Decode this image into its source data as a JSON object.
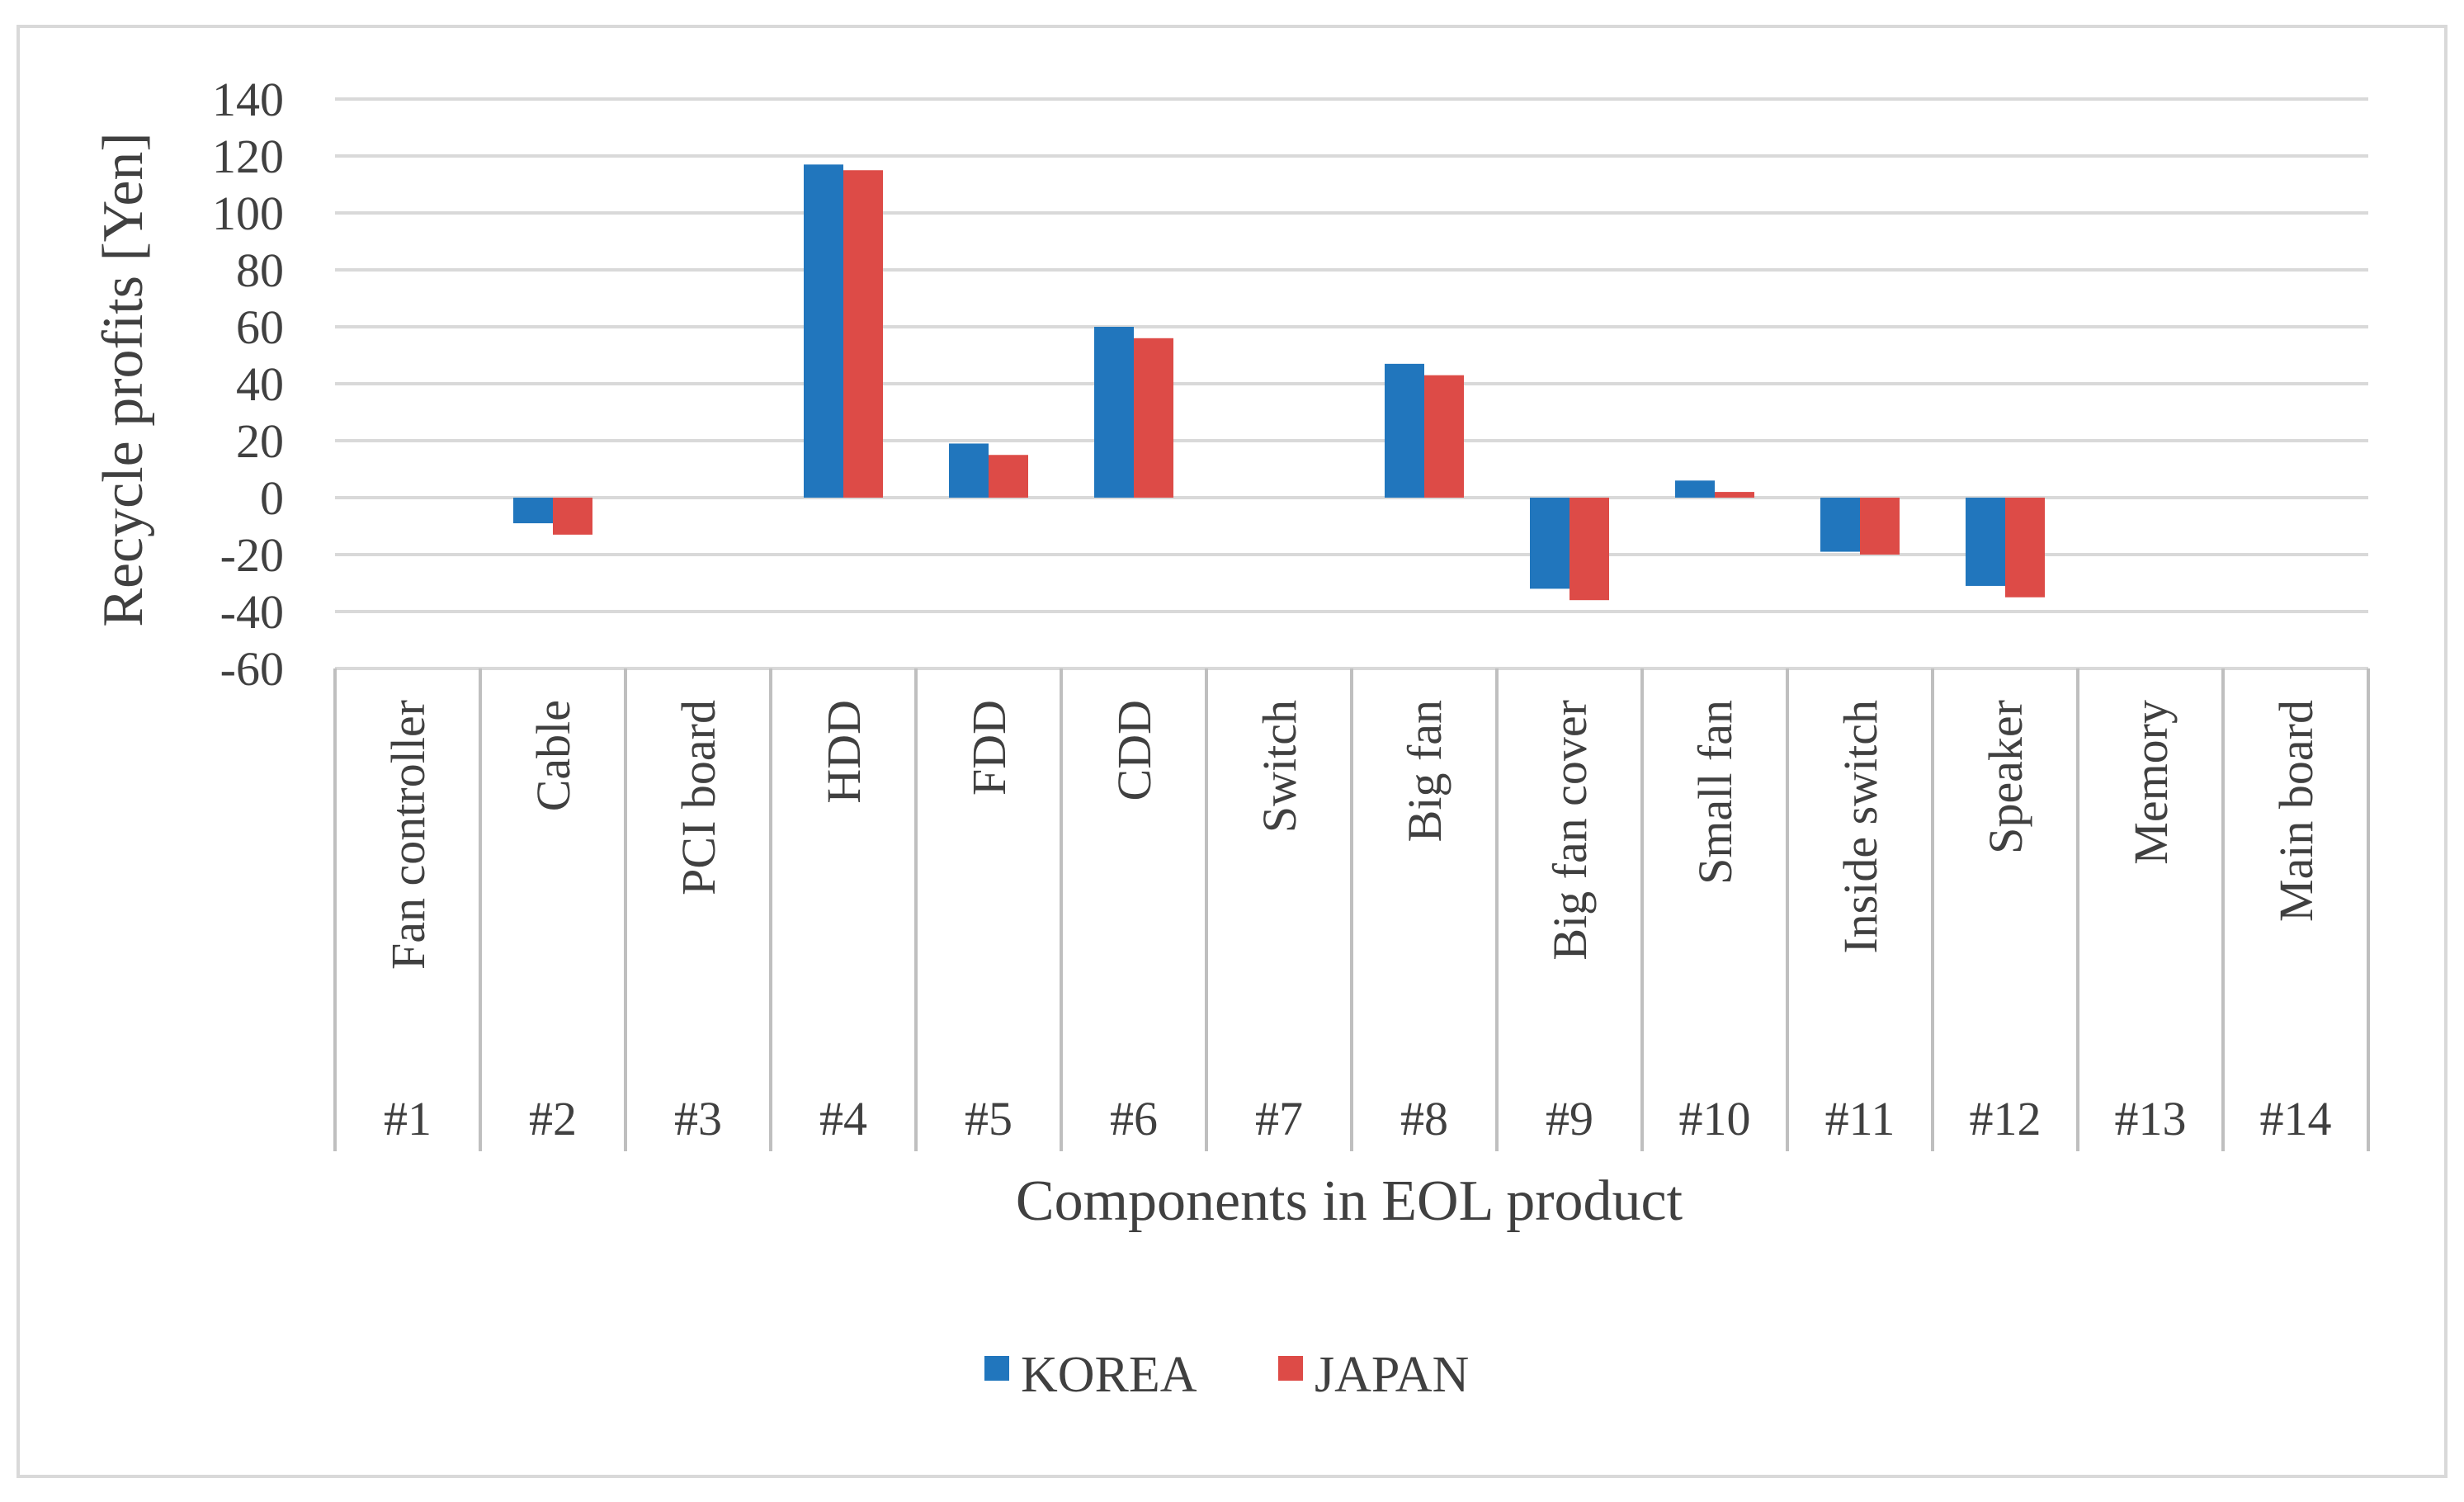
{
  "chart_data": {
    "type": "bar",
    "title": "",
    "ylabel": "Recycle profits [Yen]",
    "xlabel": "Components in EOL product",
    "ylim": [
      -60,
      140
    ],
    "yticks": [
      -60,
      -40,
      -20,
      0,
      20,
      40,
      60,
      80,
      100,
      120,
      140
    ],
    "grid": true,
    "legend_position": "bottom-center",
    "categories": [
      {
        "id": "#1",
        "name": "Fan controller"
      },
      {
        "id": "#2",
        "name": "Cable"
      },
      {
        "id": "#3",
        "name": "PCI board"
      },
      {
        "id": "#4",
        "name": "HDD"
      },
      {
        "id": "#5",
        "name": "FDD"
      },
      {
        "id": "#6",
        "name": "CDD"
      },
      {
        "id": "#7",
        "name": "Switch"
      },
      {
        "id": "#8",
        "name": "Big fan"
      },
      {
        "id": "#9",
        "name": "Big fan cover"
      },
      {
        "id": "#10",
        "name": "Small fan"
      },
      {
        "id": "#11",
        "name": "Inside switch"
      },
      {
        "id": "#12",
        "name": "Speaker"
      },
      {
        "id": "#13",
        "name": "Memory"
      },
      {
        "id": "#14",
        "name": "Main board"
      }
    ],
    "series": [
      {
        "name": "KOREA",
        "color": "#2176bd",
        "values": [
          0,
          -9,
          0,
          117,
          19,
          60,
          0,
          47,
          -32,
          6,
          -19,
          -31,
          0,
          0
        ]
      },
      {
        "name": "JAPAN",
        "color": "#dd4b47",
        "values": [
          0,
          -13,
          0,
          115,
          15,
          56,
          0,
          43,
          -36,
          2,
          -20,
          -35,
          0,
          0
        ]
      }
    ]
  },
  "colors": {
    "axis": "#bfbfbf",
    "grid": "#d9d9d9",
    "frame": "#d9d9d9",
    "text": "#404040"
  }
}
